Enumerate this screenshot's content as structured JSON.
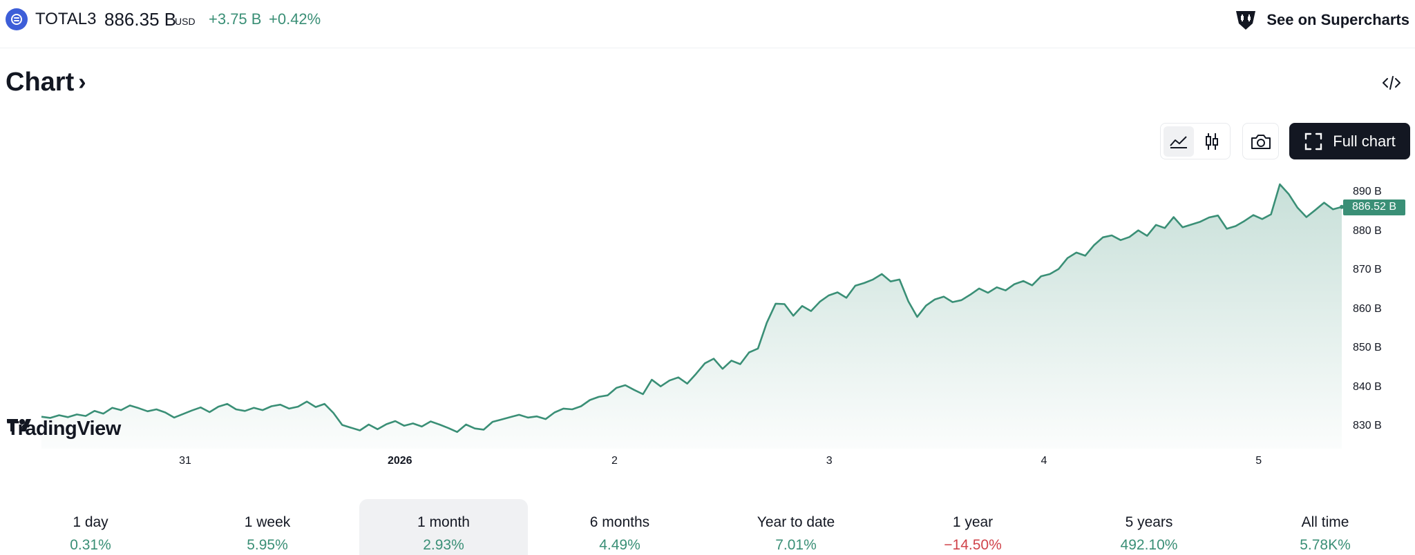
{
  "header": {
    "symbol_icon": "total3-coin-icon",
    "ticker": "TOTAL3",
    "price": "886.35 B",
    "currency": "USD",
    "change_abs": "+3.75 B",
    "change_pct": "+0.42%",
    "supercharts_label": "See on Supercharts",
    "supercharts_icon": "tradingview-chart-icon"
  },
  "title": {
    "label": "Chart",
    "chevron": "›",
    "embed_icon": "code-embed-icon"
  },
  "toolbar": {
    "area_icon": "area-chart-icon",
    "candles_icon": "candlestick-icon",
    "camera_icon": "camera-icon",
    "full_chart_label": "Full chart",
    "full_chart_icon": "fullscreen-icon"
  },
  "chart_data": {
    "type": "area",
    "series": [
      {
        "values": [
          832.7,
          832.4,
          833.1,
          832.6,
          833.3,
          832.9,
          834.2,
          833.5,
          835.0,
          834.4,
          835.6,
          834.9,
          834.1,
          834.6,
          833.8,
          832.5,
          833.4,
          834.3,
          835.1,
          833.9,
          835.3,
          836.0,
          834.6,
          834.2,
          835.0,
          834.4,
          835.4,
          835.8,
          834.8,
          835.3,
          836.6,
          835.2,
          836.0,
          833.7,
          830.6,
          829.9,
          829.2,
          830.7,
          829.5,
          830.8,
          831.6,
          830.4,
          831.0,
          830.2,
          831.5,
          830.7,
          829.8,
          828.8,
          830.7,
          829.7,
          829.4,
          831.4,
          832.0,
          832.6,
          833.2,
          832.5,
          832.8,
          832.1,
          833.8,
          834.8,
          834.6,
          835.4,
          837.0,
          837.8,
          838.2,
          840.1,
          840.8,
          839.6,
          838.5,
          842.2,
          840.5,
          842.0,
          842.8,
          841.2,
          843.7,
          846.4,
          847.6,
          845.0,
          847.1,
          846.2,
          849.2,
          850.2,
          856.8,
          861.7,
          861.6,
          858.6,
          861.1,
          859.8,
          862.2,
          863.8,
          864.6,
          863.2,
          866.3,
          867.0,
          867.9,
          869.3,
          867.4,
          867.9,
          862.3,
          858.3,
          861.2,
          862.8,
          863.5,
          862.1,
          862.6,
          864.0,
          865.6,
          864.5,
          865.9,
          865.1,
          866.7,
          867.5,
          866.4,
          868.7,
          869.3,
          870.6,
          873.4,
          874.8,
          874.0,
          876.7,
          878.7,
          879.2,
          878.0,
          878.8,
          880.5,
          879.1,
          881.9,
          881.1,
          883.9,
          881.3,
          882.0,
          882.7,
          883.8,
          884.3,
          880.9,
          881.6,
          882.9,
          884.4,
          883.4,
          884.6,
          892.3,
          889.8,
          886.3,
          883.9,
          885.7,
          887.6,
          885.9,
          886.5
        ]
      }
    ],
    "ylim": [
      826,
      893
    ],
    "y_ticks": [
      "890 B",
      "880 B",
      "870 B",
      "860 B",
      "850 B",
      "840 B",
      "830 B"
    ],
    "y_tick_values": [
      890,
      880,
      870,
      860,
      850,
      840,
      830
    ],
    "last_value_label": "886.52 B",
    "x_ticks": [
      "31",
      "2026",
      "2",
      "3",
      "4",
      "5"
    ],
    "x_tick_positions": [
      0.137,
      0.297,
      0.457,
      0.617,
      0.777,
      0.937
    ],
    "line_color": "#3a8f76",
    "area_color": "#3a8f76",
    "grid": false
  },
  "watermark": {
    "text": "TradingView",
    "icon": "tradingview-logo-icon"
  },
  "periods": [
    {
      "label": "1 day",
      "value": "0.31%",
      "dir": "up"
    },
    {
      "label": "1 week",
      "value": "5.95%",
      "dir": "up"
    },
    {
      "label": "1 month",
      "value": "2.93%",
      "dir": "up",
      "active": true
    },
    {
      "label": "6 months",
      "value": "4.49%",
      "dir": "up"
    },
    {
      "label": "Year to date",
      "value": "7.01%",
      "dir": "up"
    },
    {
      "label": "1 year",
      "value": "−14.50%",
      "dir": "down"
    },
    {
      "label": "5 years",
      "value": "492.10%",
      "dir": "up"
    },
    {
      "label": "All time",
      "value": "5.78K%",
      "dir": "up"
    }
  ],
  "colors": {
    "positive": "#3a8f76",
    "negative": "#d0434a",
    "brand": "#3d5ed8"
  }
}
